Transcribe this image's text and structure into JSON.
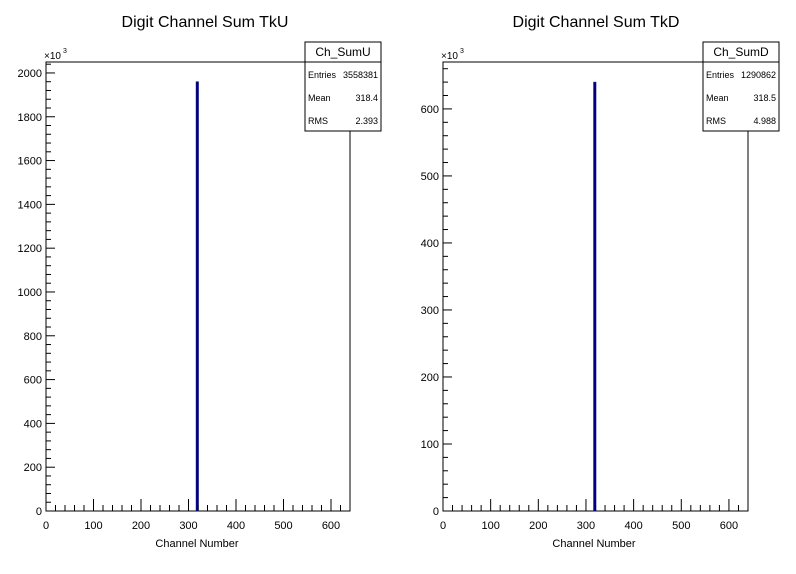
{
  "chart_data": [
    {
      "type": "bar",
      "title": "Digit Channel Sum TkU",
      "xlabel": "Channel Number",
      "ylabel": "",
      "xlim": [
        0,
        640
      ],
      "ylim": [
        0,
        2050
      ],
      "y_multiplier": "×10",
      "y_multiplier_exp": "3",
      "xticks": [
        0,
        100,
        200,
        300,
        400,
        500,
        600
      ],
      "yticks": [
        0,
        200,
        400,
        600,
        800,
        1000,
        1200,
        1400,
        1600,
        1800,
        2000
      ],
      "bins": [
        {
          "x": 318,
          "value": 1960
        }
      ],
      "bar_color": "#000080",
      "stats": {
        "name": "Ch_SumU",
        "rows": [
          {
            "label": "Entries",
            "value": "3558381"
          },
          {
            "label": "Mean",
            "value": "318.4"
          },
          {
            "label": "RMS",
            "value": "2.393"
          }
        ]
      }
    },
    {
      "type": "bar",
      "title": "Digit Channel Sum TkD",
      "xlabel": "Channel Number",
      "ylabel": "",
      "xlim": [
        0,
        640
      ],
      "ylim": [
        0,
        670
      ],
      "y_multiplier": "×10",
      "y_multiplier_exp": "3",
      "xticks": [
        0,
        100,
        200,
        300,
        400,
        500,
        600
      ],
      "yticks": [
        0,
        100,
        200,
        300,
        400,
        500,
        600
      ],
      "bins": [
        {
          "x": 318,
          "value": 640
        }
      ],
      "bar_color": "#000080",
      "stats": {
        "name": "Ch_SumD",
        "rows": [
          {
            "label": "Entries",
            "value": "1290862"
          },
          {
            "label": "Mean",
            "value": "318.5"
          },
          {
            "label": "RMS",
            "value": "4.988"
          }
        ]
      }
    }
  ]
}
